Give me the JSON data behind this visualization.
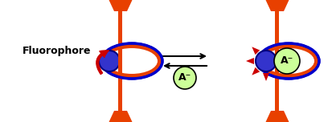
{
  "orange": "#E84000",
  "blue": "#0000CC",
  "dark_blue": "#000080",
  "blue_fill": "#3333CC",
  "red_arrow": "#CC0000",
  "light_green": "#CCFF99",
  "bg": "#FFFFFF",
  "text_color": "#000000",
  "fluorophore_label": "Fluorophore",
  "anion_label": "A⁻",
  "fig_width": 4.14,
  "fig_height": 1.52
}
